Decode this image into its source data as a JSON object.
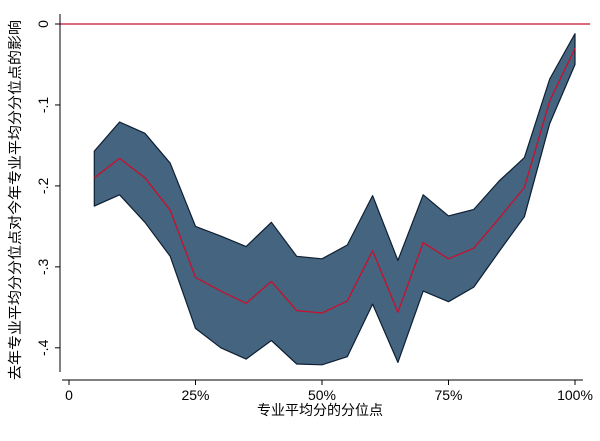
{
  "chart_data": {
    "type": "area",
    "title": "",
    "xlabel": "专业平均分的分位点",
    "ylabel": "去年专业平均分分位点对今年专业平均分分位点的影响",
    "xlim": [
      0,
      1
    ],
    "ylim": [
      -0.42,
      0
    ],
    "x_ticks": [
      {
        "value": 0,
        "label": "0"
      },
      {
        "value": 0.25,
        "label": "25%"
      },
      {
        "value": 0.5,
        "label": "50%"
      },
      {
        "value": 0.75,
        "label": "75%"
      },
      {
        "value": 1.0,
        "label": "100%"
      }
    ],
    "y_ticks": [
      {
        "value": 0,
        "label": "0"
      },
      {
        "value": -0.1,
        "label": "-.1"
      },
      {
        "value": -0.2,
        "label": "-.2"
      },
      {
        "value": -0.3,
        "label": "-.3"
      },
      {
        "value": -0.4,
        "label": "-.4"
      }
    ],
    "reference_line": {
      "y": 0,
      "color": "#c8102e"
    },
    "x": [
      0.05,
      0.1,
      0.15,
      0.2,
      0.25,
      0.3,
      0.35,
      0.4,
      0.45,
      0.5,
      0.55,
      0.6,
      0.65,
      0.7,
      0.75,
      0.8,
      0.85,
      0.9,
      0.95,
      1.0
    ],
    "series": [
      {
        "role": "estimate",
        "color": "#c8102e",
        "values": [
          -0.19,
          -0.166,
          -0.19,
          -0.23,
          -0.313,
          -0.33,
          -0.345,
          -0.318,
          -0.354,
          -0.357,
          -0.342,
          -0.28,
          -0.356,
          -0.27,
          -0.29,
          -0.277,
          -0.24,
          -0.202,
          -0.095,
          -0.03
        ]
      },
      {
        "role": "upper_bound",
        "values": [
          -0.157,
          -0.121,
          -0.135,
          -0.172,
          -0.25,
          -0.262,
          -0.275,
          -0.245,
          -0.287,
          -0.29,
          -0.273,
          -0.212,
          -0.292,
          -0.211,
          -0.237,
          -0.229,
          -0.194,
          -0.165,
          -0.068,
          -0.012
        ]
      },
      {
        "role": "lower_bound",
        "values": [
          -0.225,
          -0.211,
          -0.245,
          -0.287,
          -0.376,
          -0.4,
          -0.414,
          -0.391,
          -0.42,
          -0.421,
          -0.411,
          -0.346,
          -0.418,
          -0.33,
          -0.343,
          -0.325,
          -0.281,
          -0.238,
          -0.123,
          -0.05
        ]
      }
    ],
    "band_color": "#45647f",
    "band_outline": "#0d1f33",
    "grid": false,
    "legend": "none"
  }
}
